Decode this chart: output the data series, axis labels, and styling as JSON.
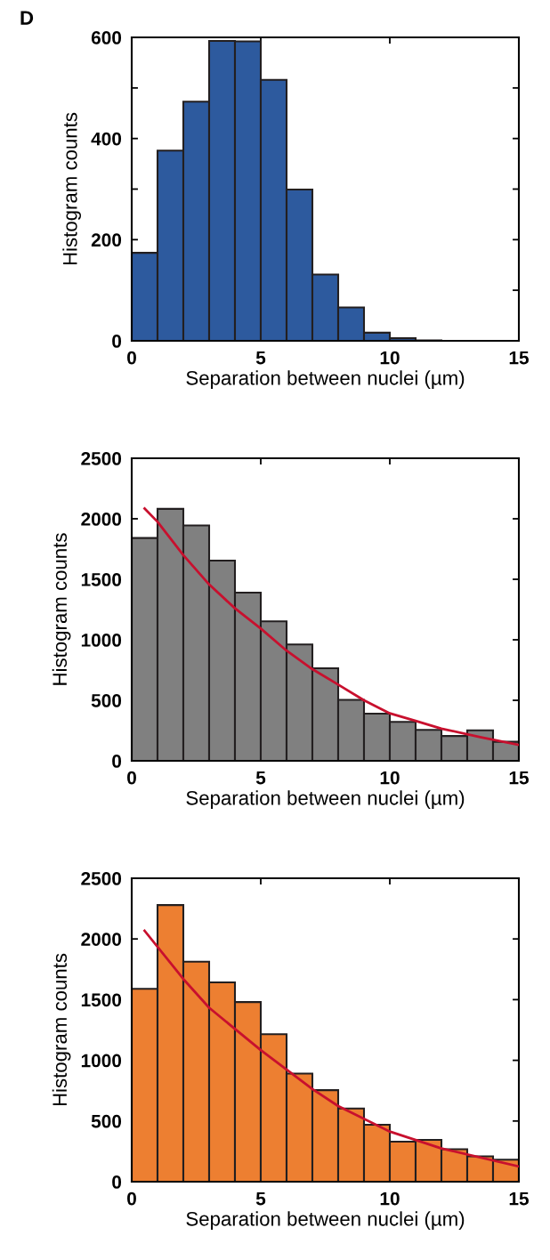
{
  "chart_data": [
    {
      "type": "histogram",
      "annotations": [
        "D"
      ],
      "xlabel": "Separation between nuclei (µm)",
      "ylabel": "Histogram counts",
      "bins": [
        0,
        1,
        2,
        3,
        4,
        5,
        6,
        7,
        8,
        9,
        10,
        11,
        12,
        13,
        14,
        15
      ],
      "series": [
        {
          "color": "#2d5a9e",
          "values": [
            174,
            376,
            473,
            593,
            592,
            516,
            299,
            131,
            66,
            16,
            5,
            1,
            0,
            0,
            0
          ]
        }
      ],
      "xlim": [
        0,
        15
      ],
      "xticks": [
        0,
        5,
        10,
        15
      ],
      "ylim": [
        0,
        600
      ],
      "yticks": [
        0,
        {
          "value": 100,
          "label": null
        },
        200,
        {
          "value": 300,
          "label": null
        },
        400,
        {
          "value": 500,
          "label": null
        },
        600
      ],
      "grid": false,
      "legend": false
    },
    {
      "type": "histogram",
      "xlabel": "Separation between nuclei (µm)",
      "ylabel": "Histogram counts",
      "bins": [
        0,
        1,
        2,
        3,
        4,
        5,
        6,
        7,
        8,
        9,
        10,
        11,
        12,
        13,
        14,
        15
      ],
      "series": [
        {
          "color": "#808080",
          "values": [
            1841,
            2082,
            1945,
            1654,
            1390,
            1152,
            961,
            765,
            504,
            390,
            322,
            255,
            205,
            252,
            157
          ]
        },
        {
          "type": "line",
          "color": "#c8102e",
          "x": [
            0.5,
            1,
            2,
            3,
            4,
            5,
            6,
            7,
            8,
            9,
            10,
            11,
            12,
            13.5,
            15
          ],
          "values": [
            2085,
            1975,
            1700,
            1457,
            1260,
            1093,
            910,
            757,
            630,
            500,
            392,
            330,
            266,
            196,
            132
          ]
        }
      ],
      "xlim": [
        0,
        15
      ],
      "xticks": [
        0,
        5,
        10,
        15
      ],
      "ylim": [
        0,
        2500
      ],
      "yticks": [
        0,
        500,
        1000,
        1500,
        2000,
        2500
      ],
      "grid": false,
      "legend": false
    },
    {
      "type": "histogram",
      "xlabel": "Separation between nuclei (µm)",
      "ylabel": "Histogram counts",
      "bins": [
        0,
        1,
        2,
        3,
        4,
        5,
        6,
        7,
        8,
        9,
        10,
        11,
        12,
        13,
        14,
        15
      ],
      "series": [
        {
          "color": "#ed7f31",
          "values": [
            1589,
            2279,
            1813,
            1642,
            1480,
            1215,
            891,
            754,
            603,
            469,
            330,
            344,
            268,
            209,
            182
          ]
        },
        {
          "type": "line",
          "color": "#c8102e",
          "x": [
            0.5,
            2,
            3,
            5,
            7,
            8,
            10,
            12,
            15
          ],
          "values": [
            2067,
            1670,
            1433,
            1084,
            763,
            623,
            413,
            274,
            126
          ]
        }
      ],
      "xlim": [
        0,
        15
      ],
      "xticks": [
        0,
        5,
        10,
        15
      ],
      "ylim": [
        0,
        2500
      ],
      "yticks": [
        0,
        500,
        1000,
        1500,
        2000,
        2500
      ],
      "grid": false,
      "legend": false
    }
  ]
}
